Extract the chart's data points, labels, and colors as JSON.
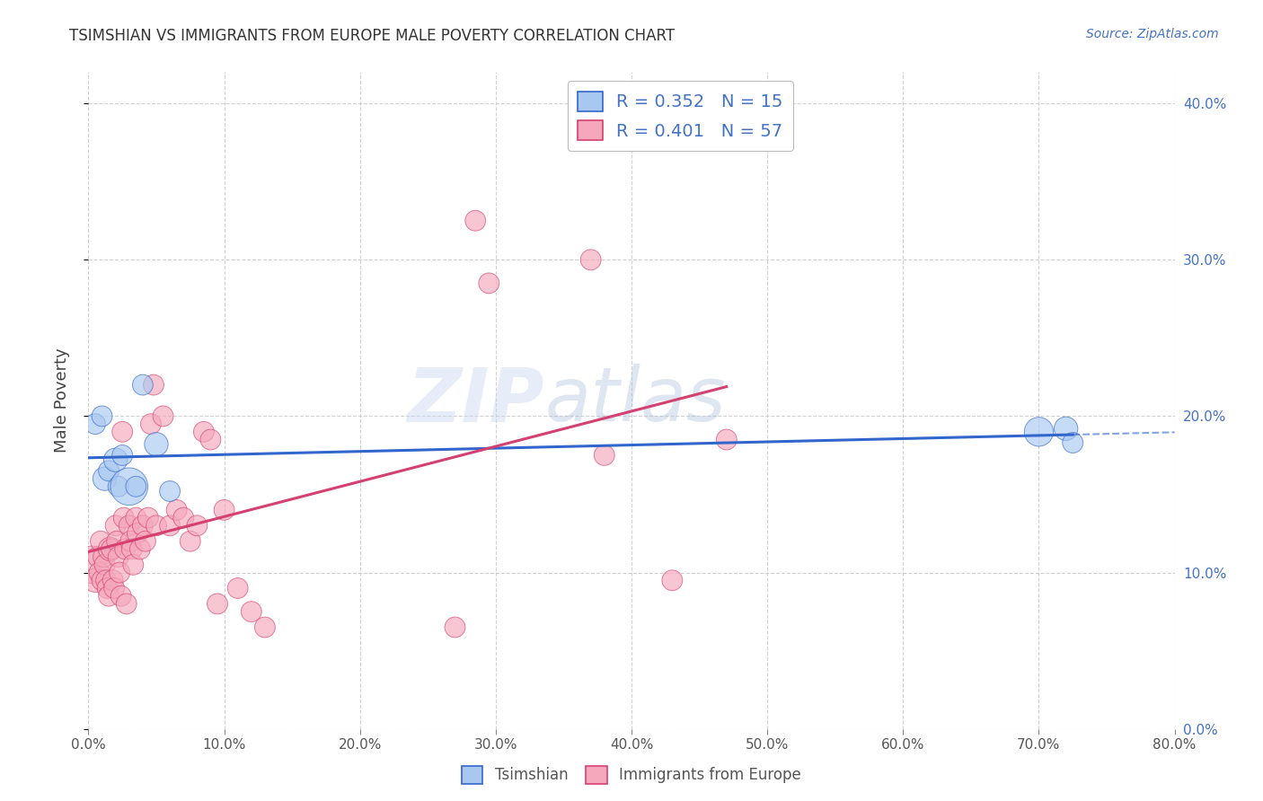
{
  "title": "TSIMSHIAN VS IMMIGRANTS FROM EUROPE MALE POVERTY CORRELATION CHART",
  "source": "Source: ZipAtlas.com",
  "ylabel": "Male Poverty",
  "xlim": [
    0,
    0.8
  ],
  "ylim": [
    0,
    0.42
  ],
  "watermark_zip": "ZIP",
  "watermark_atlas": "atlas",
  "legend_r1": "0.352",
  "legend_n1": "15",
  "legend_r2": "0.401",
  "legend_n2": "57",
  "color_tsimshian": "#A8C8F0",
  "color_europe": "#F5A8BC",
  "line_color_tsimshian": "#3366CC",
  "line_color_europe": "#D44070",
  "tsimshian_x": [
    0.005,
    0.01,
    0.012,
    0.015,
    0.02,
    0.022,
    0.025,
    0.03,
    0.035,
    0.04,
    0.05,
    0.06,
    0.7,
    0.72,
    0.725
  ],
  "tsimshian_y": [
    0.195,
    0.2,
    0.16,
    0.165,
    0.172,
    0.155,
    0.175,
    0.155,
    0.155,
    0.22,
    0.182,
    0.152,
    0.19,
    0.192,
    0.183
  ],
  "tsimshian_size": [
    60,
    60,
    80,
    60,
    80,
    60,
    60,
    200,
    60,
    60,
    80,
    60,
    120,
    80,
    60
  ],
  "europe_x": [
    0.003,
    0.005,
    0.007,
    0.008,
    0.009,
    0.01,
    0.011,
    0.012,
    0.013,
    0.014,
    0.015,
    0.016,
    0.017,
    0.018,
    0.019,
    0.02,
    0.021,
    0.022,
    0.023,
    0.024,
    0.025,
    0.026,
    0.027,
    0.028,
    0.03,
    0.031,
    0.032,
    0.033,
    0.035,
    0.036,
    0.038,
    0.04,
    0.042,
    0.044,
    0.046,
    0.048,
    0.05,
    0.055,
    0.06,
    0.065,
    0.07,
    0.075,
    0.08,
    0.085,
    0.09,
    0.095,
    0.1,
    0.11,
    0.12,
    0.13,
    0.27,
    0.285,
    0.295,
    0.37,
    0.38,
    0.43,
    0.47
  ],
  "europe_y": [
    0.105,
    0.095,
    0.11,
    0.1,
    0.12,
    0.095,
    0.11,
    0.105,
    0.095,
    0.09,
    0.085,
    0.115,
    0.115,
    0.095,
    0.09,
    0.13,
    0.12,
    0.11,
    0.1,
    0.085,
    0.19,
    0.135,
    0.115,
    0.08,
    0.13,
    0.12,
    0.115,
    0.105,
    0.135,
    0.125,
    0.115,
    0.13,
    0.12,
    0.135,
    0.195,
    0.22,
    0.13,
    0.2,
    0.13,
    0.14,
    0.135,
    0.12,
    0.13,
    0.19,
    0.185,
    0.08,
    0.14,
    0.09,
    0.075,
    0.065,
    0.065,
    0.325,
    0.285,
    0.3,
    0.175,
    0.095,
    0.185
  ],
  "europe_size": [
    200,
    80,
    60,
    60,
    60,
    60,
    60,
    60,
    60,
    60,
    60,
    80,
    60,
    60,
    60,
    60,
    60,
    60,
    60,
    60,
    60,
    60,
    60,
    60,
    60,
    60,
    60,
    60,
    60,
    60,
    60,
    60,
    60,
    60,
    60,
    60,
    60,
    60,
    60,
    60,
    60,
    60,
    60,
    60,
    60,
    60,
    60,
    60,
    60,
    60,
    60,
    60,
    60,
    60,
    60,
    60,
    60
  ],
  "yticks": [
    0.0,
    0.1,
    0.2,
    0.3,
    0.4
  ],
  "xticks": [
    0.0,
    0.1,
    0.2,
    0.3,
    0.4,
    0.5,
    0.6,
    0.7,
    0.8
  ],
  "grid_color": "#CCCCCC",
  "background_color": "#FFFFFF"
}
